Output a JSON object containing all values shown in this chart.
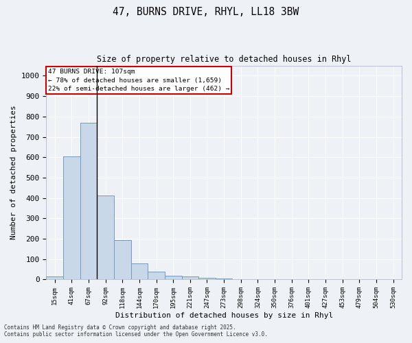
{
  "title_line1": "47, BURNS DRIVE, RHYL, LL18 3BW",
  "title_line2": "Size of property relative to detached houses in Rhyl",
  "xlabel": "Distribution of detached houses by size in Rhyl",
  "ylabel": "Number of detached properties",
  "bar_labels": [
    "15sqm",
    "41sqm",
    "67sqm",
    "92sqm",
    "118sqm",
    "144sqm",
    "170sqm",
    "195sqm",
    "221sqm",
    "247sqm",
    "273sqm",
    "298sqm",
    "324sqm",
    "350sqm",
    "376sqm",
    "401sqm",
    "427sqm",
    "453sqm",
    "479sqm",
    "504sqm",
    "530sqm"
  ],
  "bar_values": [
    15,
    603,
    770,
    413,
    192,
    78,
    40,
    17,
    15,
    8,
    6,
    0,
    0,
    0,
    0,
    0,
    0,
    0,
    0,
    0,
    0
  ],
  "bar_color": "#c8d8e8",
  "bar_edge_color": "#7799bb",
  "annotation_line1": "47 BURNS DRIVE: 107sqm",
  "annotation_line2": "← 78% of detached houses are smaller (1,659)",
  "annotation_line3": "22% of semi-detached houses are larger (462) →",
  "annotation_box_facecolor": "#ffffff",
  "annotation_box_edgecolor": "#cc0000",
  "vline_x_index": 2.5,
  "ylim": [
    0,
    1050
  ],
  "yticks": [
    0,
    100,
    200,
    300,
    400,
    500,
    600,
    700,
    800,
    900,
    1000
  ],
  "background_color": "#eef2f7",
  "grid_color": "#ffffff",
  "footer_line1": "Contains HM Land Registry data © Crown copyright and database right 2025.",
  "footer_line2": "Contains public sector information licensed under the Open Government Licence v3.0."
}
